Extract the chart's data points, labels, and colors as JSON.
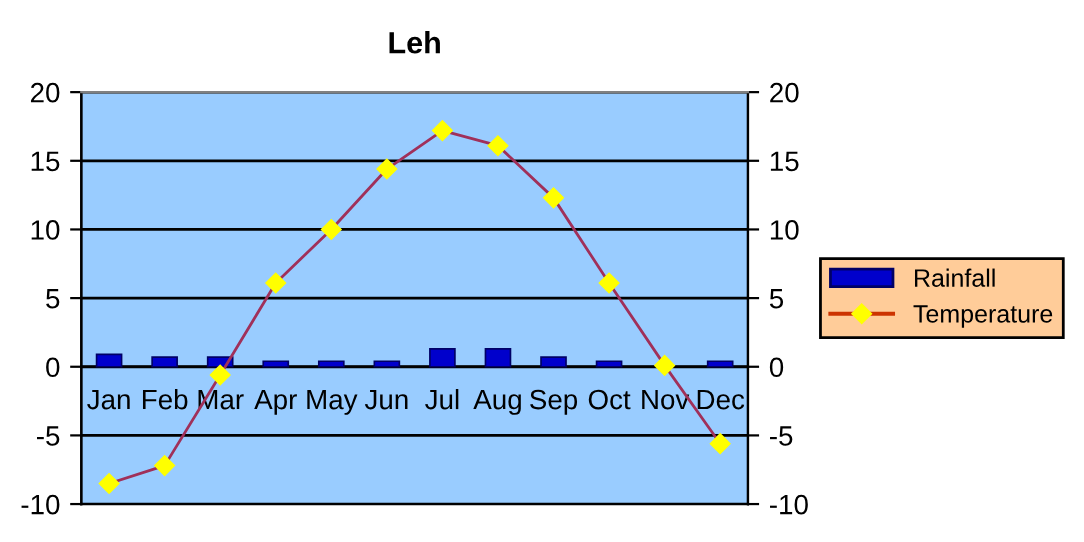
{
  "chart_data": {
    "type": "bar",
    "title": "Leh",
    "categories": [
      "Jan",
      "Feb",
      "Mar",
      "Apr",
      "May",
      "Jun",
      "Jul",
      "Aug",
      "Sep",
      "Oct",
      "Nov",
      "Dec"
    ],
    "series": [
      {
        "name": "Rainfall",
        "color": "#0000cc",
        "values": [
          0.9,
          0.7,
          0.7,
          0.4,
          0.4,
          0.4,
          1.3,
          1.3,
          0.7,
          0.4,
          null,
          0.4
        ]
      },
      {
        "name": "Temperature",
        "type": "line",
        "color": "#a0305a",
        "values": [
          -8.5,
          -7.2,
          -0.6,
          6.1,
          10,
          14.4,
          17.2,
          16.1,
          12.3,
          6.1,
          0.1,
          -5.6
        ],
        "marker": "diamond"
      }
    ],
    "ylim": [
      -10,
      20
    ],
    "yticks": [
      -10,
      -5,
      0,
      5,
      10,
      15,
      20
    ],
    "y2lim": [
      -10,
      20
    ],
    "y2ticks": [
      -10,
      -5,
      0,
      5,
      10,
      15,
      20
    ],
    "grid": "y",
    "legend": "right"
  }
}
